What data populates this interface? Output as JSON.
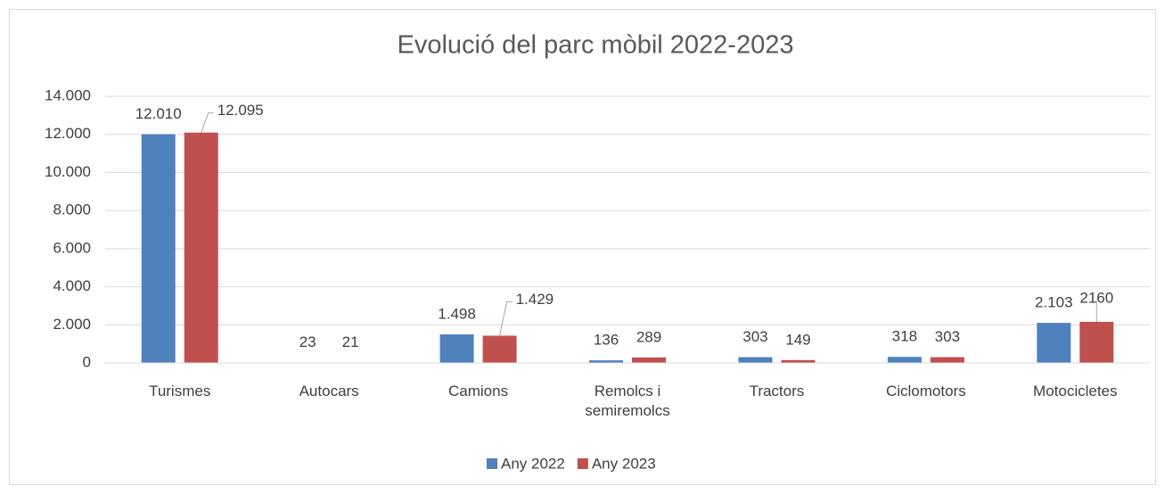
{
  "chart_data": {
    "type": "bar",
    "title": "Evolució del parc mòbil 2022-2023",
    "categories": [
      "Turismes",
      "Autocars",
      "Camions",
      "Remolcs i semiremolcs",
      "Tractors",
      "Ciclomotors",
      "Motocicletes"
    ],
    "series": [
      {
        "name": "Any 2022",
        "color": "#4f81bd",
        "values": [
          12010,
          23,
          1498,
          136,
          303,
          318,
          2103
        ],
        "value_labels": [
          "12.010",
          "23",
          "1.498",
          "136",
          "303",
          "318",
          "2.103"
        ]
      },
      {
        "name": "Any 2023",
        "color": "#c0504d",
        "values": [
          12095,
          21,
          1429,
          289,
          149,
          303,
          2160
        ],
        "value_labels": [
          "12.095",
          "21",
          "1.429",
          "289",
          "149",
          "303",
          "2160"
        ]
      }
    ],
    "ylim": [
      0,
      14000
    ],
    "yticks": [
      0,
      {
        "value": 2000,
        "label": "2.000"
      },
      {
        "value": 4000,
        "label": "4.000"
      },
      {
        "value": 6000,
        "label": "6.000"
      },
      {
        "value": 8000,
        "label": "8.000"
      },
      {
        "value": 10000,
        "label": "10.000"
      },
      {
        "value": 12000,
        "label": "12.000"
      },
      {
        "value": 14000,
        "label": "14.000"
      }
    ],
    "grid": true,
    "legend": "bottom"
  }
}
